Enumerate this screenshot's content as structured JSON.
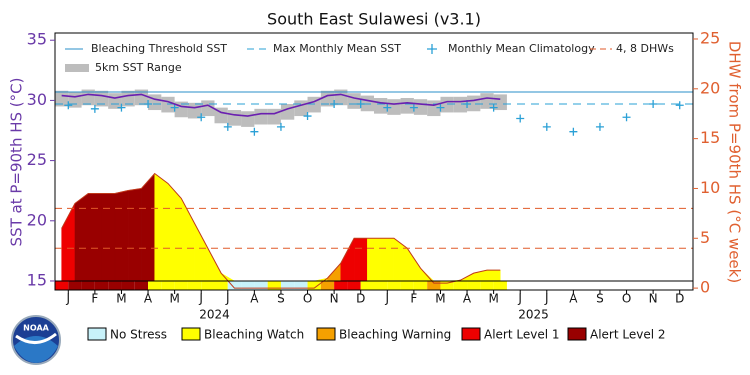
{
  "chart_data": {
    "type": "line",
    "title": "South East Sulawesi (v3.1)",
    "y_label": "SST at P=90th HS (°C)",
    "y2_label": "DHW from P=90th HS (°C week)",
    "xlim": [
      0,
      24
    ],
    "xticks": [
      {
        "value": 0.5,
        "label": "J"
      },
      {
        "value": 1.5,
        "label": "F"
      },
      {
        "value": 2.5,
        "label": "M"
      },
      {
        "value": 3.5,
        "label": "A"
      },
      {
        "value": 4.5,
        "label": "M"
      },
      {
        "value": 5.5,
        "label": "J"
      },
      {
        "value": 6.5,
        "label": "J"
      },
      {
        "value": 7.5,
        "label": "A"
      },
      {
        "value": 8.5,
        "label": "S"
      },
      {
        "value": 9.5,
        "label": "O"
      },
      {
        "value": 10.5,
        "label": "N"
      },
      {
        "value": 11.5,
        "label": "D"
      },
      {
        "value": 12.5,
        "label": "J"
      },
      {
        "value": 13.5,
        "label": "F"
      },
      {
        "value": 14.5,
        "label": "M"
      },
      {
        "value": 15.5,
        "label": "A"
      },
      {
        "value": 16.5,
        "label": "M"
      },
      {
        "value": 17.5,
        "label": "J"
      },
      {
        "value": 18.5,
        "label": "J"
      },
      {
        "value": 19.5,
        "label": "A"
      },
      {
        "value": 20.5,
        "label": "S"
      },
      {
        "value": 21.5,
        "label": "O"
      },
      {
        "value": 22.5,
        "label": "N"
      },
      {
        "value": 23.5,
        "label": "D"
      }
    ],
    "year_labels": [
      {
        "value": 6,
        "label": "2024"
      },
      {
        "value": 18,
        "label": "2025"
      }
    ],
    "ylim": [
      14.25,
      35.6
    ],
    "yticks": [
      15,
      20,
      25,
      30,
      35
    ],
    "y2lim": [
      -0.19,
      25.6
    ],
    "y2ticks": [
      0,
      5,
      10,
      15,
      20,
      25
    ],
    "threshold": {
      "name": "Bleaching Threshold SST",
      "color": "#2a8fc8",
      "value": 30.7
    },
    "mmm": {
      "name": "Max Monthly Mean SST",
      "color": "#2aa0d6",
      "value": 29.7
    },
    "climatology": {
      "name": "Monthly Mean Climatology",
      "color": "#2aa0d6",
      "x": [
        0.5,
        1.5,
        2.5,
        3.5,
        4.5,
        5.5,
        6.5,
        7.5,
        8.5,
        9.5,
        10.5,
        11.5,
        12.5,
        13.5,
        14.5,
        15.5,
        16.5,
        17.5,
        18.5,
        19.5,
        20.5,
        21.5,
        22.5,
        23.5
      ],
      "values": [
        29.6,
        29.3,
        29.4,
        29.7,
        29.4,
        28.6,
        27.8,
        27.4,
        27.8,
        28.7,
        29.7,
        29.7,
        29.4,
        29.4,
        29.4,
        29.7,
        29.4,
        28.5,
        27.8,
        27.4,
        27.8,
        28.6,
        29.7,
        29.6
      ]
    },
    "dhw_lines": {
      "name": "4, 8 DHWs",
      "color": "#e05a28",
      "values": [
        4,
        8
      ],
      "axis": "y2"
    },
    "range": {
      "name": "5km SST Range",
      "color": "#bdbdbd",
      "max": [
        30.8,
        30.7,
        30.9,
        30.8,
        30.6,
        30.8,
        30.9,
        30.5,
        30.3,
        29.9,
        29.8,
        30.0,
        29.4,
        29.2,
        29.1,
        29.3,
        29.3,
        29.7,
        30.0,
        30.3,
        30.8,
        30.9,
        30.6,
        30.4,
        30.2,
        30.1,
        30.2,
        30.1,
        30.0,
        30.3,
        30.3,
        30.4,
        30.6,
        30.5
      ],
      "min": [
        29.5,
        29.4,
        29.6,
        29.5,
        29.3,
        29.5,
        29.6,
        29.2,
        29.0,
        28.6,
        28.5,
        28.7,
        28.1,
        27.9,
        27.8,
        28.0,
        28.0,
        28.4,
        28.7,
        29.0,
        29.5,
        29.6,
        29.3,
        29.1,
        28.9,
        28.8,
        28.9,
        28.8,
        28.7,
        29.0,
        29.0,
        29.1,
        29.3,
        29.2
      ]
    },
    "x": [
      0.25,
      0.75,
      1.25,
      1.75,
      2.25,
      2.75,
      3.25,
      3.75,
      4.25,
      4.75,
      5.25,
      5.75,
      6.25,
      6.75,
      7.25,
      7.75,
      8.25,
      8.75,
      9.25,
      9.75,
      10.25,
      10.75,
      11.25,
      11.75,
      12.25,
      12.75,
      13.25,
      13.75,
      14.25,
      14.75,
      15.25,
      15.75,
      16.25,
      16.75
    ],
    "sst": {
      "color": "#6a1fb0",
      "values": [
        30.4,
        30.3,
        30.5,
        30.4,
        30.2,
        30.4,
        30.5,
        30.1,
        29.9,
        29.5,
        29.4,
        29.6,
        29.0,
        28.8,
        28.7,
        28.9,
        28.9,
        29.3,
        29.6,
        29.9,
        30.4,
        30.5,
        30.2,
        30.0,
        29.8,
        29.7,
        29.8,
        29.7,
        29.6,
        29.9,
        29.9,
        30.0,
        30.2,
        30.1
      ]
    },
    "dhw": {
      "color": "#c0391b",
      "axis": "y2",
      "values": [
        6,
        8.5,
        9.5,
        9.5,
        9.5,
        9.8,
        10,
        11.5,
        10.5,
        9,
        6.5,
        4,
        1.5,
        0,
        0,
        0,
        0,
        0,
        0,
        0,
        1,
        2.5,
        5,
        5,
        5,
        5,
        4,
        2,
        0.5,
        0.5,
        0.8,
        1.5,
        1.8,
        1.8
      ]
    },
    "stress": {
      "levels": [
        3,
        4,
        4,
        4,
        4,
        4,
        4,
        1,
        1,
        1,
        1,
        1,
        1,
        0,
        0,
        0,
        1,
        0,
        0,
        1,
        2,
        3,
        3,
        1,
        1,
        1,
        1,
        1,
        2,
        1,
        1,
        1,
        1,
        1
      ],
      "legend": [
        {
          "name": "No Stress",
          "color": "#c8f2fa"
        },
        {
          "name": "Bleaching Watch",
          "color": "#ffff00"
        },
        {
          "name": "Bleaching Warning",
          "color": "#f5a000"
        },
        {
          "name": "Alert Level 1",
          "color": "#ee0000"
        },
        {
          "name": "Alert Level 2",
          "color": "#990000"
        }
      ]
    }
  }
}
